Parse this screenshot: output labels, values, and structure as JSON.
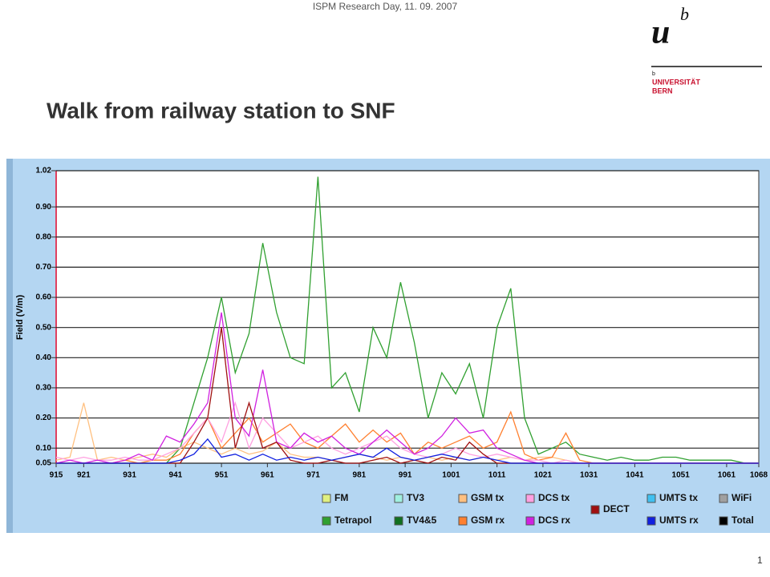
{
  "header": {
    "event": "ISPM Research Day, 11. 09. 2007",
    "logo_u": "u",
    "logo_b": "b",
    "logo_small_b": "b",
    "logo_line1": "UNIVERSITÄT",
    "logo_line2": "BERN"
  },
  "page_number": "1",
  "chart_data": {
    "type": "line",
    "title": "Walk from railway station to SNF",
    "y_label": "Field (V/m)",
    "x": [
      915,
      918,
      921,
      924,
      927,
      930,
      933,
      936,
      939,
      942,
      945,
      948,
      951,
      954,
      957,
      960,
      963,
      966,
      969,
      972,
      975,
      978,
      981,
      984,
      987,
      990,
      993,
      996,
      999,
      1002,
      1005,
      1008,
      1011,
      1014,
      1017,
      1020,
      1023,
      1026,
      1029,
      1032,
      1035,
      1038,
      1041,
      1044,
      1047,
      1050,
      1053,
      1056,
      1059,
      1062,
      1065,
      1068
    ],
    "xlim": [
      915,
      1068
    ],
    "xticks": [
      915,
      921,
      931,
      941,
      951,
      961,
      971,
      981,
      991,
      1001,
      1011,
      1021,
      1031,
      1041,
      1051,
      1061,
      1068
    ],
    "ylim": [
      0.05,
      1.02
    ],
    "yticks": [
      0.05,
      {
        "value": 0.1,
        "label": "0.10"
      },
      {
        "value": 0.2,
        "label": "0.20"
      },
      {
        "value": 0.3,
        "label": "0.30"
      },
      {
        "value": 0.4,
        "label": "0.40"
      },
      {
        "value": 0.5,
        "label": "0.50"
      },
      {
        "value": 0.6,
        "label": "0.60"
      },
      {
        "value": 0.7,
        "label": "0.70"
      },
      {
        "value": 0.8,
        "label": "0.80"
      },
      {
        "value": 0.9,
        "label": "0.90"
      },
      1.02
    ],
    "grid": true,
    "series": [
      {
        "name": "FM",
        "color": "#e0f080",
        "values": [
          null,
          null,
          null,
          null,
          null,
          null,
          null,
          null,
          null,
          null,
          null,
          null,
          null,
          null,
          null,
          null,
          null,
          null,
          null,
          null,
          null,
          null,
          null,
          null,
          null,
          null,
          null,
          null,
          null,
          null,
          null,
          null,
          null,
          null,
          null,
          null,
          null,
          null,
          null,
          null,
          null,
          null,
          null,
          null,
          null,
          null,
          null,
          null,
          null,
          null,
          null,
          null
        ]
      },
      {
        "name": "Tetrapol",
        "color": "#30a030",
        "values": [
          0.05,
          0.05,
          0.05,
          0.05,
          0.05,
          0.05,
          0.05,
          0.05,
          0.05,
          0.1,
          0.25,
          0.4,
          0.6,
          0.35,
          0.48,
          0.78,
          0.55,
          0.4,
          0.38,
          1.0,
          0.3,
          0.35,
          0.22,
          0.5,
          0.4,
          0.65,
          0.45,
          0.2,
          0.35,
          0.28,
          0.38,
          0.2,
          0.5,
          0.63,
          0.2,
          0.08,
          0.1,
          0.12,
          0.08,
          0.07,
          0.06,
          0.07,
          0.06,
          0.06,
          0.07,
          0.07,
          0.06,
          0.06,
          0.06,
          0.06,
          0.05,
          0.05
        ]
      },
      {
        "name": "TV3",
        "color": "#a0f0e0",
        "values": [
          null,
          null,
          null,
          null,
          null,
          null,
          null,
          null,
          null,
          null,
          null,
          null,
          null,
          null,
          null,
          null,
          null,
          null,
          null,
          null,
          null,
          null,
          null,
          null,
          null,
          null,
          null,
          null,
          null,
          null,
          null,
          null,
          null,
          null,
          null,
          null,
          null,
          null,
          null,
          null,
          null,
          null,
          null,
          null,
          null,
          null,
          null,
          null,
          null,
          null,
          null,
          null
        ]
      },
      {
        "name": "TV4&5",
        "color": "#107020",
        "values": [
          null,
          null,
          null,
          null,
          null,
          null,
          null,
          null,
          null,
          null,
          null,
          null,
          null,
          null,
          null,
          null,
          null,
          null,
          null,
          null,
          null,
          null,
          null,
          null,
          null,
          null,
          null,
          null,
          null,
          null,
          null,
          null,
          null,
          null,
          null,
          null,
          null,
          null,
          null,
          null,
          null,
          null,
          null,
          null,
          null,
          null,
          null,
          null,
          null,
          null,
          null,
          null
        ]
      },
      {
        "name": "GSM tx",
        "color": "#ffc080",
        "values": [
          0.06,
          0.07,
          0.25,
          0.06,
          0.07,
          0.06,
          0.07,
          0.08,
          0.07,
          0.1,
          0.12,
          0.1,
          0.08,
          0.1,
          0.08,
          0.09,
          0.12,
          0.08,
          0.07,
          0.07,
          0.06,
          0.07,
          0.08,
          0.07,
          0.06,
          0.07,
          0.06,
          0.07,
          0.06,
          0.07,
          0.06,
          0.07,
          0.06,
          0.07,
          0.06,
          0.07,
          0.07,
          0.06,
          0.05,
          0.05,
          0.05,
          0.05,
          0.05,
          0.05,
          0.05,
          0.05,
          0.05,
          0.05,
          0.05,
          0.05,
          0.05,
          0.05
        ]
      },
      {
        "name": "GSM rx",
        "color": "#ff8030",
        "values": [
          0.05,
          0.05,
          0.05,
          0.05,
          0.05,
          0.06,
          0.05,
          0.06,
          0.06,
          0.08,
          0.15,
          0.2,
          0.1,
          0.15,
          0.2,
          0.12,
          0.15,
          0.18,
          0.12,
          0.1,
          0.14,
          0.18,
          0.12,
          0.16,
          0.12,
          0.15,
          0.08,
          0.12,
          0.1,
          0.12,
          0.14,
          0.1,
          0.12,
          0.22,
          0.08,
          0.06,
          0.07,
          0.15,
          0.06,
          0.05,
          0.05,
          0.05,
          0.05,
          0.05,
          0.05,
          0.05,
          0.05,
          0.05,
          0.05,
          0.05,
          0.05,
          0.05
        ]
      },
      {
        "name": "DCS tx",
        "color": "#ffa0e0",
        "values": [
          0.07,
          0.06,
          0.07,
          0.06,
          0.06,
          0.07,
          0.06,
          0.06,
          0.08,
          0.1,
          0.15,
          0.2,
          0.12,
          0.25,
          0.1,
          0.2,
          0.15,
          0.1,
          0.12,
          0.14,
          0.1,
          0.08,
          0.1,
          0.12,
          0.14,
          0.1,
          0.08,
          0.07,
          0.08,
          0.1,
          0.08,
          0.07,
          0.08,
          0.07,
          0.06,
          0.06,
          0.05,
          0.06,
          0.05,
          0.05,
          0.05,
          0.05,
          0.05,
          0.05,
          0.05,
          0.05,
          0.05,
          0.05,
          0.05,
          0.05,
          0.05,
          0.05
        ]
      },
      {
        "name": "DCS rx",
        "color": "#d020e0",
        "values": [
          0.05,
          0.06,
          0.05,
          0.06,
          0.05,
          0.06,
          0.08,
          0.06,
          0.14,
          0.12,
          0.18,
          0.25,
          0.55,
          0.2,
          0.14,
          0.36,
          0.12,
          0.1,
          0.15,
          0.12,
          0.14,
          0.1,
          0.08,
          0.12,
          0.16,
          0.12,
          0.08,
          0.1,
          0.14,
          0.2,
          0.15,
          0.16,
          0.1,
          0.08,
          0.06,
          0.05,
          0.05,
          0.05,
          0.05,
          0.05,
          0.05,
          0.05,
          0.05,
          0.05,
          0.05,
          0.05,
          0.05,
          0.05,
          0.05,
          0.05,
          0.05,
          0.05
        ]
      },
      {
        "name": "DECT",
        "color": "#a01010",
        "values": [
          0.05,
          0.05,
          0.05,
          0.05,
          0.05,
          0.05,
          0.05,
          0.05,
          0.05,
          0.05,
          0.12,
          0.2,
          0.5,
          0.1,
          0.25,
          0.1,
          0.12,
          0.06,
          0.05,
          0.05,
          0.06,
          0.05,
          0.05,
          0.06,
          0.07,
          0.05,
          0.06,
          0.05,
          0.07,
          0.06,
          0.12,
          0.08,
          0.05,
          0.05,
          0.05,
          0.05,
          0.05,
          0.05,
          0.05,
          0.05,
          0.05,
          0.05,
          0.05,
          0.05,
          0.05,
          0.05,
          0.05,
          0.05,
          0.05,
          0.05,
          0.05,
          0.05
        ]
      },
      {
        "name": "UMTS tx",
        "color": "#40c0f0",
        "values": [
          null,
          null,
          null,
          null,
          null,
          null,
          null,
          null,
          null,
          null,
          null,
          null,
          null,
          null,
          null,
          null,
          null,
          null,
          null,
          null,
          null,
          null,
          null,
          null,
          null,
          null,
          null,
          null,
          null,
          null,
          null,
          null,
          null,
          null,
          null,
          null,
          null,
          null,
          null,
          null,
          null,
          null,
          null,
          null,
          null,
          null,
          null,
          null,
          null,
          null,
          null,
          null
        ]
      },
      {
        "name": "UMTS rx",
        "color": "#1020e0",
        "values": [
          0.05,
          0.05,
          0.05,
          0.05,
          0.05,
          0.05,
          0.05,
          0.05,
          0.05,
          0.06,
          0.08,
          0.13,
          0.07,
          0.08,
          0.06,
          0.08,
          0.06,
          0.07,
          0.06,
          0.07,
          0.06,
          0.07,
          0.08,
          0.07,
          0.1,
          0.07,
          0.06,
          0.07,
          0.08,
          0.07,
          0.06,
          0.07,
          0.06,
          0.05,
          0.05,
          0.05,
          0.05,
          0.05,
          0.05,
          0.05,
          0.05,
          0.05,
          0.05,
          0.05,
          0.05,
          0.05,
          0.05,
          0.05,
          0.05,
          0.05,
          0.05,
          0.05
        ]
      },
      {
        "name": "WiFi",
        "color": "#a0a0a0",
        "values": [
          null,
          null,
          null,
          null,
          null,
          null,
          null,
          null,
          null,
          null,
          null,
          null,
          null,
          null,
          null,
          null,
          null,
          null,
          null,
          null,
          null,
          null,
          null,
          null,
          null,
          null,
          null,
          null,
          null,
          null,
          null,
          null,
          null,
          null,
          null,
          null,
          null,
          null,
          null,
          null,
          null,
          null,
          null,
          null,
          null,
          null,
          null,
          null,
          null,
          null,
          null,
          null
        ]
      },
      {
        "name": "Total",
        "color": "#000000",
        "values": [
          null,
          null,
          null,
          null,
          null,
          null,
          null,
          null,
          null,
          null,
          null,
          null,
          null,
          null,
          null,
          null,
          null,
          null,
          null,
          null,
          null,
          null,
          null,
          null,
          null,
          null,
          null,
          null,
          null,
          null,
          null,
          null,
          null,
          null,
          null,
          null,
          null,
          null,
          null,
          null,
          null,
          null,
          null,
          null,
          null,
          null,
          null,
          null,
          null,
          null,
          null,
          null
        ]
      }
    ]
  }
}
